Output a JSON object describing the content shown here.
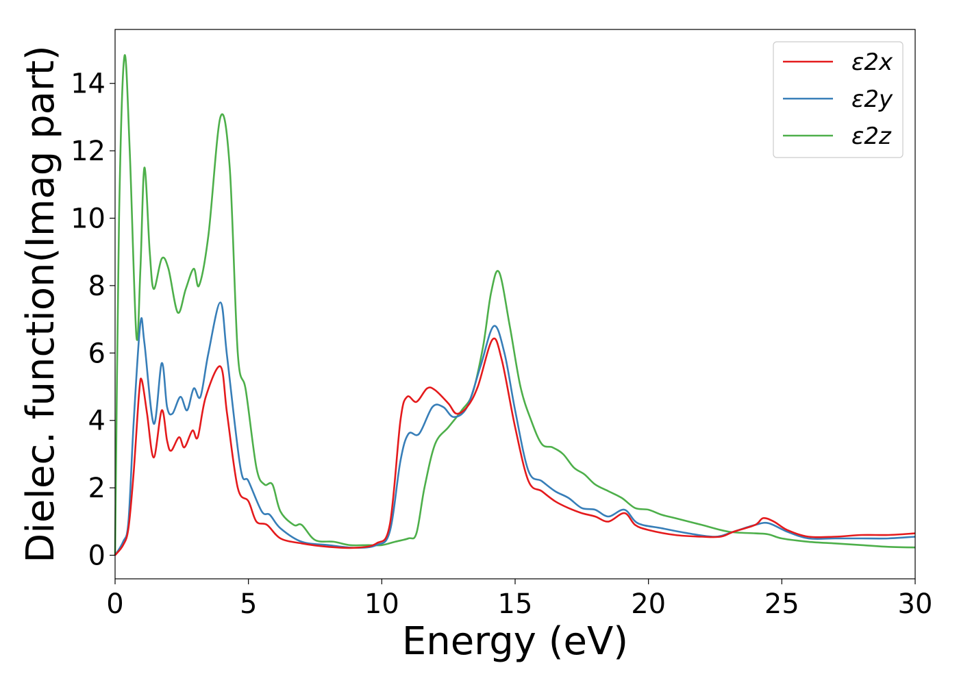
{
  "chart_data": {
    "type": "line",
    "xlabel": "Energy (eV)",
    "ylabel": "Dielec. function(Imag part)",
    "xlim": [
      0,
      30
    ],
    "ylim": [
      -0.7,
      15.6
    ],
    "xticks": [
      0,
      5,
      10,
      15,
      20,
      25,
      30
    ],
    "yticks": [
      0,
      2,
      4,
      6,
      8,
      10,
      12,
      14
    ],
    "grid": false,
    "legend_position": "top-right",
    "series": [
      {
        "name": "ε2x",
        "color": "#e41a1c",
        "x": [
          0,
          0.3,
          0.5,
          0.7,
          0.9,
          1.0,
          1.2,
          1.45,
          1.75,
          1.95,
          2.1,
          2.4,
          2.6,
          2.9,
          3.1,
          3.4,
          3.95,
          4.2,
          4.6,
          5.0,
          5.3,
          5.7,
          6.2,
          7,
          8,
          9,
          9.8,
          10.3,
          10.7,
          10.95,
          11.3,
          11.7,
          12.0,
          12.5,
          12.8,
          13.2,
          13.6,
          14.15,
          14.5,
          15.0,
          15.5,
          16.0,
          16.5,
          17.0,
          17.5,
          18.0,
          18.5,
          19.1,
          19.5,
          20,
          21,
          22,
          22.7,
          23.2,
          24.0,
          24.3,
          24.7,
          25.2,
          26,
          27,
          28,
          29,
          30
        ],
        "values": [
          0,
          0.3,
          0.8,
          2.5,
          4.8,
          5.2,
          4.2,
          2.9,
          4.3,
          3.4,
          3.1,
          3.5,
          3.2,
          3.7,
          3.5,
          4.7,
          5.6,
          4.2,
          2.0,
          1.6,
          1.0,
          0.9,
          0.5,
          0.35,
          0.25,
          0.22,
          0.35,
          0.9,
          4.0,
          4.7,
          4.55,
          4.95,
          4.9,
          4.5,
          4.2,
          4.4,
          5.0,
          6.4,
          5.8,
          3.8,
          2.2,
          1.9,
          1.6,
          1.4,
          1.25,
          1.15,
          1.0,
          1.25,
          0.9,
          0.75,
          0.6,
          0.55,
          0.55,
          0.7,
          0.9,
          1.1,
          1.0,
          0.75,
          0.55,
          0.55,
          0.6,
          0.6,
          0.65
        ]
      },
      {
        "name": "ε2y",
        "color": "#377eb8",
        "x": [
          0,
          0.3,
          0.5,
          0.7,
          0.95,
          1.1,
          1.45,
          1.75,
          1.95,
          2.15,
          2.45,
          2.7,
          2.95,
          3.2,
          3.5,
          3.95,
          4.2,
          4.7,
          5.0,
          5.5,
          5.8,
          6.2,
          7,
          8,
          9,
          9.8,
          10.3,
          10.7,
          11.0,
          11.4,
          11.9,
          12.3,
          12.7,
          13.2,
          13.7,
          14.2,
          14.6,
          15.0,
          15.5,
          16.0,
          16.5,
          17.0,
          17.5,
          18.0,
          18.5,
          19.1,
          19.6,
          20.5,
          21.5,
          22.5,
          23.2,
          24.0,
          24.5,
          25.2,
          26,
          27,
          28,
          29,
          30
        ],
        "values": [
          0,
          0.4,
          1.0,
          4.0,
          6.9,
          6.3,
          3.9,
          5.7,
          4.4,
          4.2,
          4.7,
          4.3,
          4.95,
          4.7,
          6.0,
          7.5,
          5.9,
          2.6,
          2.2,
          1.3,
          1.2,
          0.8,
          0.4,
          0.3,
          0.22,
          0.3,
          0.7,
          2.8,
          3.6,
          3.6,
          4.4,
          4.4,
          4.1,
          4.4,
          5.6,
          6.8,
          6.0,
          4.3,
          2.5,
          2.2,
          1.9,
          1.7,
          1.4,
          1.35,
          1.15,
          1.35,
          0.95,
          0.8,
          0.65,
          0.55,
          0.7,
          0.9,
          0.95,
          0.7,
          0.5,
          0.5,
          0.5,
          0.5,
          0.55
        ]
      },
      {
        "name": "ε2z",
        "color": "#4daf4a",
        "x": [
          0,
          0.15,
          0.35,
          0.55,
          0.8,
          0.95,
          1.1,
          1.3,
          1.45,
          1.75,
          2.0,
          2.35,
          2.65,
          2.95,
          3.15,
          3.5,
          3.95,
          4.3,
          4.6,
          4.9,
          5.3,
          5.6,
          5.9,
          6.2,
          6.7,
          7.0,
          7.5,
          8.2,
          8.8,
          9.5,
          10.0,
          10.5,
          11.0,
          11.3,
          11.6,
          12.0,
          12.5,
          13.0,
          13.4,
          13.8,
          14.1,
          14.4,
          14.8,
          15.2,
          15.6,
          16.0,
          16.4,
          16.8,
          17.2,
          17.6,
          18.0,
          18.5,
          19.0,
          19.5,
          20.0,
          20.5,
          21.0,
          22.0,
          23.0,
          24.0,
          24.5,
          25.0,
          26.0,
          27.0,
          28.0,
          29.0,
          30.0
        ],
        "values": [
          0,
          10.0,
          14.8,
          12.0,
          6.5,
          8.5,
          11.5,
          9.0,
          7.9,
          8.8,
          8.5,
          7.2,
          7.9,
          8.5,
          8.0,
          9.5,
          13.0,
          11.5,
          6.0,
          4.9,
          2.6,
          2.1,
          2.1,
          1.3,
          0.9,
          0.9,
          0.45,
          0.4,
          0.3,
          0.3,
          0.3,
          0.4,
          0.5,
          0.65,
          2.0,
          3.3,
          3.8,
          4.3,
          4.8,
          6.2,
          7.8,
          8.4,
          6.8,
          5.0,
          4.0,
          3.3,
          3.2,
          3.0,
          2.6,
          2.4,
          2.1,
          1.9,
          1.7,
          1.4,
          1.35,
          1.2,
          1.1,
          0.9,
          0.7,
          0.65,
          0.62,
          0.5,
          0.4,
          0.35,
          0.3,
          0.25,
          0.23
        ]
      }
    ]
  }
}
